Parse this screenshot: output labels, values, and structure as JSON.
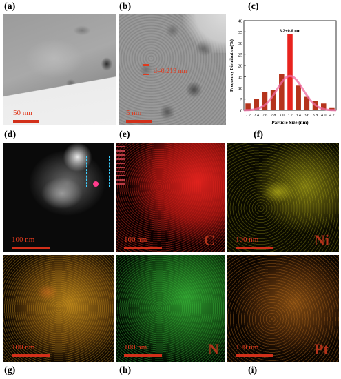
{
  "panels": {
    "a": {
      "label": "(a)",
      "scale": "50 nm"
    },
    "b": {
      "label": "(b)",
      "scale": "5 nm",
      "annotation": "d=0.213 nm"
    },
    "c": {
      "label": "(c)"
    },
    "d": {
      "label": "(d)",
      "scale": "100 nm"
    },
    "e": {
      "label": "(e)",
      "scale": "100 nm",
      "element": "C",
      "color": "#e8231e"
    },
    "f": {
      "label": "(f)",
      "scale": "100 nm",
      "element": "Ni",
      "color": "#d8d21e"
    },
    "g": {
      "label": "(g)",
      "scale": "100 nm",
      "color": "#e0a020"
    },
    "h": {
      "label": "(h)",
      "scale": "100 nm",
      "element": "N",
      "color": "#3cc83c"
    },
    "i": {
      "label": "(i)",
      "scale": "100 nm",
      "element": "Pt",
      "color": "#d07a1e"
    }
  },
  "chart_data": {
    "type": "bar",
    "categories": [
      "2.2",
      "2.4",
      "2.6",
      "2.8",
      "3.0",
      "3.2",
      "3.4",
      "3.6",
      "3.8",
      "4.0",
      "4.2"
    ],
    "values": [
      3,
      5,
      8,
      9,
      16,
      34,
      11,
      6,
      4,
      3,
      1
    ],
    "ylabel": "Frequency Distribution(%)",
    "xlabel": "Particle Size (nm)",
    "annotation": "3.2±0.6 nm",
    "ylim": [
      0,
      40
    ],
    "yticks": [
      0,
      5,
      10,
      15,
      20,
      25,
      30,
      35,
      40
    ],
    "bar_color": "#b5341c",
    "highlight_color": "#e8231e",
    "curve_color": "#f06aa0"
  }
}
